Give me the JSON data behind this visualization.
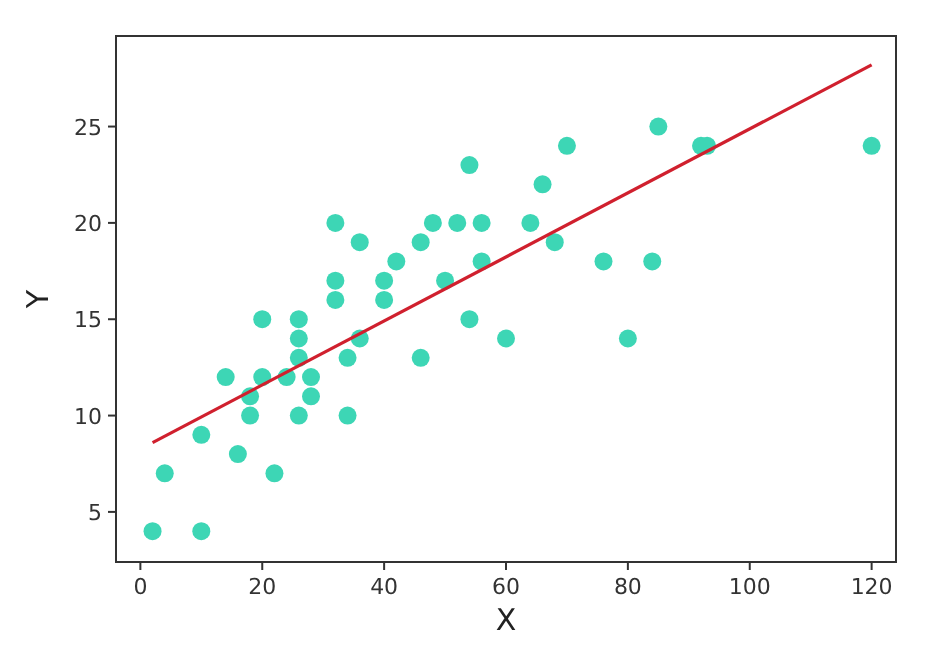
{
  "chart_data": {
    "type": "scatter",
    "xlabel": "X",
    "ylabel": "Y",
    "xlim": [
      -4,
      124
    ],
    "ylim": [
      2.4,
      29.7
    ],
    "xticks": [
      0,
      20,
      40,
      60,
      80,
      100,
      120
    ],
    "yticks": [
      5,
      10,
      15,
      20,
      25
    ],
    "grid": false,
    "series": [
      {
        "marker": "circle",
        "color": "#3dd6b5",
        "x": [
          2,
          4,
          10,
          10,
          14,
          16,
          18,
          18,
          20,
          20,
          22,
          24,
          26,
          26,
          26,
          26,
          28,
          28,
          32,
          32,
          32,
          34,
          34,
          36,
          36,
          40,
          40,
          42,
          46,
          46,
          48,
          50,
          52,
          54,
          54,
          56,
          56,
          60,
          64,
          66,
          68,
          70,
          76,
          80,
          84,
          85,
          92,
          93,
          120
        ],
        "values": [
          4,
          7,
          4,
          9,
          12,
          8,
          11,
          10,
          15,
          12,
          7,
          12,
          15,
          14,
          13,
          10,
          12,
          11,
          20,
          17,
          16,
          13,
          10,
          19,
          14,
          17,
          16,
          18,
          19,
          13,
          20,
          17,
          20,
          23,
          15,
          20,
          18,
          14,
          20,
          22,
          19,
          24,
          18,
          14,
          18,
          25,
          24,
          24,
          24
        ]
      },
      {
        "type": "line",
        "color": "#d0202e",
        "x": [
          2,
          120
        ],
        "values": [
          8.6,
          28.2
        ]
      }
    ]
  }
}
